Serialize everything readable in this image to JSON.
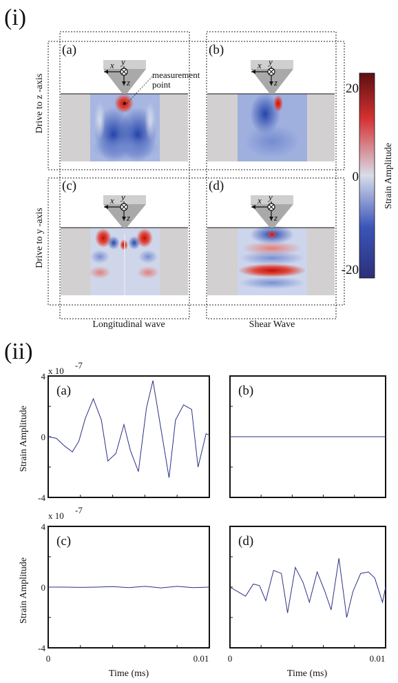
{
  "part_i": {
    "label": "(i)",
    "panel_labels": [
      "(a)",
      "(b)",
      "(c)",
      "(d)"
    ],
    "row_labels": [
      "Drive to z -axis",
      "Drive to y -axis"
    ],
    "column_labels": [
      "Longitudinal wave",
      "Shear Wave"
    ],
    "measurement_point": [
      "measurement",
      "point"
    ],
    "axis_letters": {
      "x": "x",
      "y": "y",
      "z": "z"
    },
    "colorbar": {
      "label": "Strain Amplitude",
      "ticks": [
        "20",
        "0",
        "-20"
      ],
      "colors": [
        "#2c2f7a",
        "#3b56b8",
        "#d8dcea",
        "#d43131",
        "#5c1010"
      ]
    },
    "colors": {
      "tissue": "#d2d0d0",
      "probe": "#a9a9a9",
      "probe_top": "#cfcfcf",
      "wave_blue": "#3253b5",
      "wave_red": "#d42a2a"
    }
  },
  "part_ii": {
    "label": "(ii)",
    "multiplier": "x 10",
    "exponent": "-7",
    "xlabel": "Time (ms)",
    "ylabel": "Strain Amplitude",
    "chart_data": [
      {
        "type": "line",
        "panel": "(a)",
        "xlim": [
          0,
          0.01
        ],
        "ylim": [
          -4,
          4
        ],
        "yticks": [
          "4",
          "0",
          "-4"
        ],
        "xticks": [],
        "series": [
          {
            "x": [
              0,
              0.0005,
              0.001,
              0.0015,
              0.0019,
              0.0023,
              0.0028,
              0.0033,
              0.0037,
              0.0042,
              0.0047,
              0.0051,
              0.0056,
              0.0061,
              0.0065,
              0.007,
              0.0075,
              0.0079,
              0.0084,
              0.0089,
              0.0093,
              0.0098,
              0.01
            ],
            "values": [
              0,
              -0.1,
              -0.6,
              -1.0,
              -0.3,
              1.2,
              2.5,
              1.1,
              -1.6,
              -1.1,
              0.8,
              -0.9,
              -2.3,
              1.9,
              3.7,
              0.5,
              -2.7,
              1.1,
              2.1,
              1.8,
              -2.0,
              0.2,
              0.1
            ]
          }
        ]
      },
      {
        "type": "line",
        "panel": "(b)",
        "xlim": [
          0,
          0.01
        ],
        "ylim": [
          -4,
          4
        ],
        "yticks": [],
        "xticks": [],
        "series": [
          {
            "x": [
              0,
              0.0025,
              0.005,
              0.0075,
              0.01
            ],
            "values": [
              0,
              0,
              0,
              0,
              0
            ]
          }
        ]
      },
      {
        "type": "line",
        "panel": "(c)",
        "xlim": [
          0,
          0.01
        ],
        "ylim": [
          -4,
          4
        ],
        "yticks": [
          "4",
          "0",
          "-4"
        ],
        "xticks": [
          "0",
          "0.01"
        ],
        "series": [
          {
            "x": [
              0,
              0.001,
              0.002,
              0.003,
              0.004,
              0.005,
              0.006,
              0.007,
              0.008,
              0.009,
              0.01
            ],
            "values": [
              0,
              0,
              -0.02,
              0,
              0.03,
              -0.03,
              0.05,
              -0.05,
              0.05,
              -0.03,
              0
            ]
          }
        ]
      },
      {
        "type": "line",
        "panel": "(d)",
        "xlim": [
          0,
          0.01
        ],
        "ylim": [
          -4,
          4
        ],
        "yticks": [],
        "xticks": [
          "0",
          "0.01"
        ],
        "series": [
          {
            "x": [
              0,
              0.0005,
              0.001,
              0.0015,
              0.0019,
              0.0023,
              0.0028,
              0.0033,
              0.0037,
              0.0042,
              0.0047,
              0.0051,
              0.0056,
              0.0061,
              0.0065,
              0.007,
              0.0075,
              0.0079,
              0.0084,
              0.0089,
              0.0093,
              0.0098,
              0.01
            ],
            "values": [
              0,
              -0.3,
              -0.6,
              0.2,
              0.1,
              -0.9,
              1.1,
              0.9,
              -1.7,
              1.3,
              0.3,
              -1.0,
              1.0,
              -0.3,
              -1.5,
              1.9,
              -2.0,
              -0.3,
              0.9,
              1.0,
              0.6,
              -1.0,
              0
            ]
          }
        ]
      }
    ]
  }
}
